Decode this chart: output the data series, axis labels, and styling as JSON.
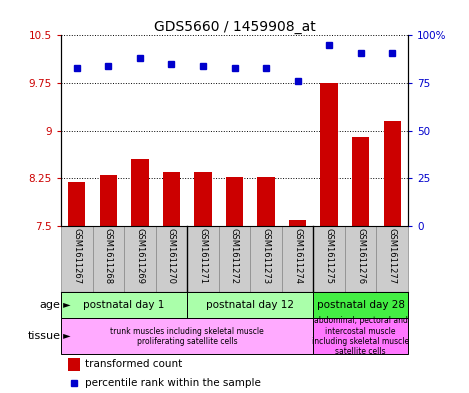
{
  "title": "GDS5660 / 1459908_at",
  "samples": [
    "GSM1611267",
    "GSM1611268",
    "GSM1611269",
    "GSM1611270",
    "GSM1611271",
    "GSM1611272",
    "GSM1611273",
    "GSM1611274",
    "GSM1611275",
    "GSM1611276",
    "GSM1611277"
  ],
  "transformed_count": [
    8.2,
    8.3,
    8.55,
    8.35,
    8.35,
    8.28,
    8.27,
    7.6,
    9.75,
    8.9,
    9.15
  ],
  "percentile_rank": [
    83,
    84,
    88,
    85,
    84,
    83,
    83,
    76,
    95,
    91,
    91
  ],
  "ylim_left": [
    7.5,
    10.5
  ],
  "ylim_right": [
    0,
    100
  ],
  "yticks_left": [
    7.5,
    8.25,
    9.0,
    9.75,
    10.5
  ],
  "yticks_right": [
    0,
    25,
    50,
    75,
    100
  ],
  "ytick_labels_left": [
    "7.5",
    "8.25",
    "9",
    "9.75",
    "10.5"
  ],
  "ytick_labels_right": [
    "0",
    "25",
    "50",
    "75",
    "100%"
  ],
  "bar_color": "#cc0000",
  "dot_color": "#0000cc",
  "age_groups": [
    {
      "label": "postnatal day 1",
      "start": 0,
      "end": 4,
      "color": "#aaffaa"
    },
    {
      "label": "postnatal day 12",
      "start": 4,
      "end": 8,
      "color": "#aaffaa"
    },
    {
      "label": "postnatal day 28",
      "start": 8,
      "end": 11,
      "color": "#44ee44"
    }
  ],
  "tissue_groups": [
    {
      "label": "trunk muscles including skeletal muscle\nproliferating satellite cells",
      "start": 0,
      "end": 8,
      "color": "#ffaaff"
    },
    {
      "label": "abdominal, pectoral and\nintercostal muscle\nincluding skeletal muscle\nsatellite cells",
      "start": 8,
      "end": 11,
      "color": "#ff77ff"
    }
  ],
  "legend_bar_label": "transformed count",
  "legend_dot_label": "percentile rank within the sample",
  "age_label": "age",
  "tissue_label": "tissue",
  "title_fontsize": 10,
  "tick_fontsize": 7.5,
  "label_fontsize": 8,
  "bg_color": "#ffffff",
  "plot_bg_color": "#ffffff",
  "xticklabel_bg": "#cccccc"
}
